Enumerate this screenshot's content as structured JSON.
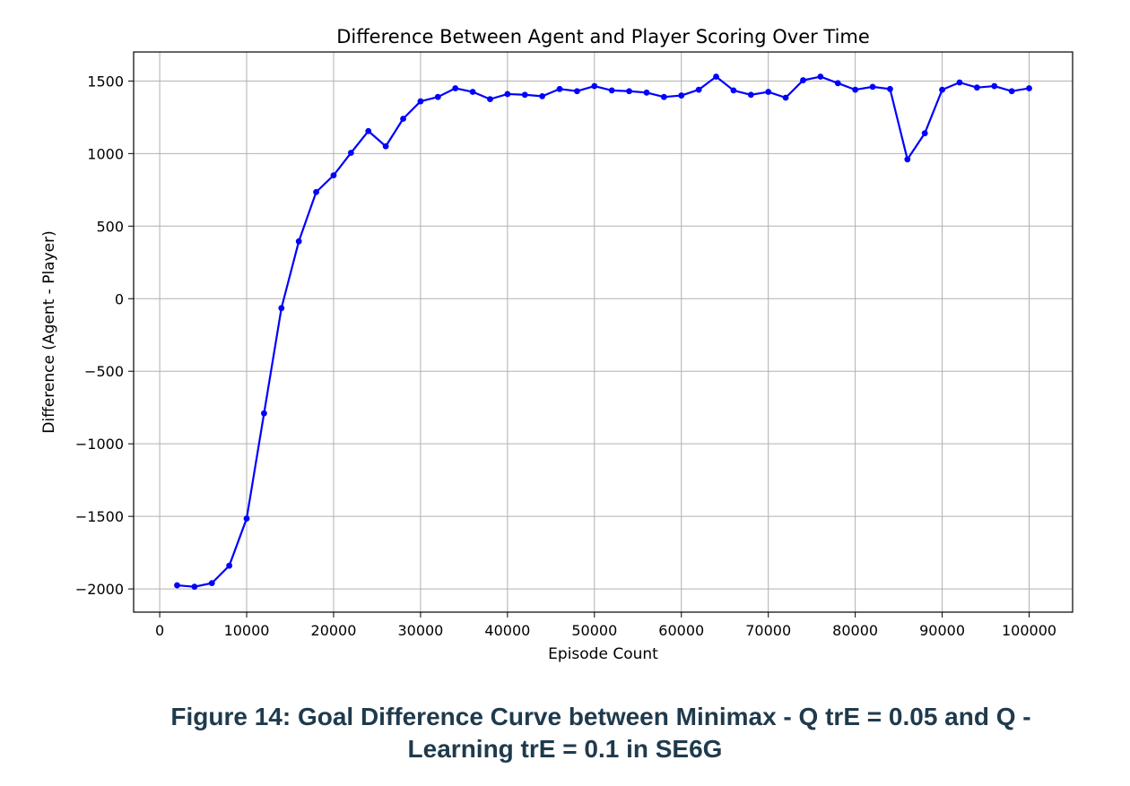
{
  "chart_data": {
    "type": "line",
    "title": "Difference Between Agent and Player Scoring Over Time",
    "xlabel": "Episode Count",
    "ylabel": "Difference (Agent - Player)",
    "xlim": [
      -3000,
      105000
    ],
    "ylim": [
      -2160,
      1700
    ],
    "xticks": [
      0,
      10000,
      20000,
      30000,
      40000,
      50000,
      60000,
      70000,
      80000,
      90000,
      100000
    ],
    "xtick_labels": [
      "0",
      "10000",
      "20000",
      "30000",
      "40000",
      "50000",
      "60000",
      "70000",
      "80000",
      "90000",
      "100000"
    ],
    "yticks": [
      -2000,
      -1500,
      -1000,
      -500,
      0,
      500,
      1000,
      1500
    ],
    "ytick_labels": [
      "−2000",
      "−1500",
      "−1000",
      "−500",
      "0",
      "500",
      "1000",
      "1500"
    ],
    "grid": true,
    "series": [
      {
        "color": "#0000ff",
        "marker": "circle",
        "x": [
          2000,
          4000,
          6000,
          8000,
          10000,
          12000,
          14000,
          16000,
          18000,
          20000,
          22000,
          24000,
          26000,
          28000,
          30000,
          32000,
          34000,
          36000,
          38000,
          40000,
          42000,
          44000,
          46000,
          48000,
          50000,
          52000,
          54000,
          56000,
          58000,
          60000,
          62000,
          64000,
          66000,
          68000,
          70000,
          72000,
          74000,
          76000,
          78000,
          80000,
          82000,
          84000,
          86000,
          88000,
          90000,
          92000,
          94000,
          96000,
          98000,
          100000
        ],
        "y": [
          -1975,
          -1985,
          -1960,
          -1840,
          -1515,
          -790,
          -65,
          395,
          735,
          850,
          1005,
          1155,
          1050,
          1240,
          1360,
          1390,
          1450,
          1425,
          1375,
          1410,
          1405,
          1395,
          1445,
          1430,
          1465,
          1435,
          1430,
          1420,
          1390,
          1400,
          1440,
          1530,
          1435,
          1405,
          1425,
          1385,
          1505,
          1530,
          1485,
          1440,
          1460,
          1445,
          960,
          1140,
          1440,
          1490,
          1455,
          1465,
          1430,
          1450
        ]
      }
    ]
  },
  "caption": {
    "line1": "Figure 14: Goal Difference Curve between Minimax - Q trE = 0.05 and Q -",
    "line2": "Learning trE = 0.1 in SE6G"
  }
}
